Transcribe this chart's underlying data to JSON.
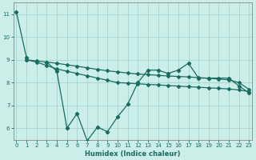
{
  "xlabel": "Humidex (Indice chaleur)",
  "bg_color": "#cceee8",
  "grid_color": "#aad8d0",
  "line_color": "#1a6b60",
  "x": [
    0,
    1,
    2,
    3,
    4,
    5,
    6,
    7,
    8,
    9,
    10,
    11,
    12,
    13,
    14,
    15,
    16,
    17,
    18,
    19,
    20,
    21,
    22,
    23
  ],
  "line_jagged": [
    11.1,
    9.1,
    null,
    8.9,
    8.5,
    6.0,
    6.65,
    5.45,
    6.05,
    5.85,
    6.5,
    7.05,
    8.0,
    8.55,
    8.55,
    8.4,
    8.55,
    8.85,
    8.2,
    8.2,
    8.2,
    8.2,
    7.85,
    7.55
  ],
  "line_mid": [
    null,
    9.0,
    8.9,
    8.75,
    8.6,
    8.5,
    8.4,
    8.3,
    8.2,
    8.1,
    8.0,
    7.98,
    7.95,
    7.92,
    7.9,
    7.87,
    7.85,
    7.82,
    7.8,
    7.77,
    7.75,
    7.72,
    7.68,
    7.6
  ],
  "line_top": [
    null,
    9.0,
    8.95,
    8.9,
    8.85,
    8.78,
    8.72,
    8.65,
    8.58,
    8.52,
    8.47,
    8.42,
    8.38,
    8.35,
    8.32,
    8.29,
    8.27,
    8.25,
    8.22,
    8.19,
    8.16,
    8.12,
    8.0,
    7.7
  ],
  "ylim": [
    5.5,
    11.5
  ],
  "xlim": [
    -0.3,
    23.3
  ],
  "yticks": [
    6,
    7,
    8,
    9,
    10,
    11
  ],
  "xticks": [
    0,
    1,
    2,
    3,
    4,
    5,
    6,
    7,
    8,
    9,
    10,
    11,
    12,
    13,
    14,
    15,
    16,
    17,
    18,
    19,
    20,
    21,
    22,
    23
  ]
}
